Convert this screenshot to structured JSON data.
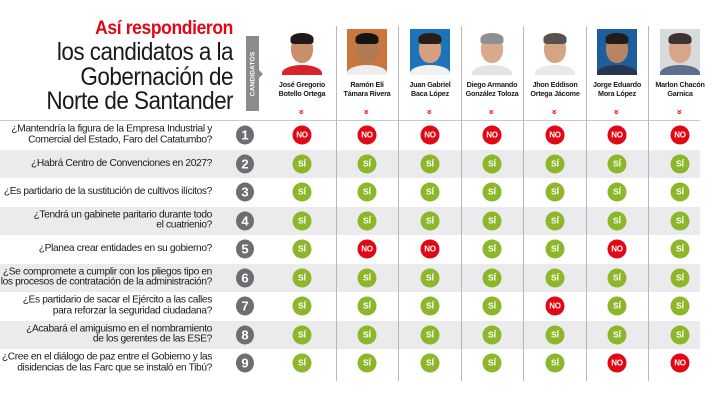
{
  "title": {
    "highlight": "Así respondieron",
    "lines": [
      "los candidatos a la",
      "Gobernación de",
      "Norte de Santander"
    ]
  },
  "candidates_tab_label": "CANDIDATOS",
  "colors": {
    "accent_red": "#e30613",
    "yes_green": "#8db72a",
    "number_gray": "#6d6e71",
    "alt_row": "#ebebed"
  },
  "candidates": [
    {
      "name_line1": "José Gregorio",
      "name_line2": "Botello Ortega"
    },
    {
      "name_line1": "Ramón Elí",
      "name_line2": "Támara Rivera"
    },
    {
      "name_line1": "Juan Gabriel",
      "name_line2": "Baca López"
    },
    {
      "name_line1": "Diego Armando",
      "name_line2": "González Toloza"
    },
    {
      "name_line1": "Jhon Eddison",
      "name_line2": "Ortega Jácome"
    },
    {
      "name_line1": "Jorge Eduardo",
      "name_line2": "Mora López"
    },
    {
      "name_line1": "Marlon Chacón",
      "name_line2": "Garnica"
    }
  ],
  "chevron_icon": "»",
  "labels": {
    "yes": "SÍ",
    "no": "NO"
  },
  "questions": [
    {
      "num": "1",
      "line1": "¿Mantendría la figura de la Empresa Industrial y",
      "line2": "Comercial del Estado, Faro del Catatumbo?",
      "answers": [
        "NO",
        "NO",
        "NO",
        "NO",
        "NO",
        "NO",
        "NO"
      ]
    },
    {
      "num": "2",
      "line1": "¿Habrá Centro de Convenciones en 2027?",
      "line2": "",
      "answers": [
        "SÍ",
        "SÍ",
        "SÍ",
        "SÍ",
        "SÍ",
        "SÍ",
        "SÍ"
      ]
    },
    {
      "num": "3",
      "line1": "¿Es partidario de la sustitución de cultivos ilícitos?",
      "line2": "",
      "answers": [
        "SÍ",
        "SÍ",
        "SÍ",
        "SÍ",
        "SÍ",
        "SÍ",
        "SÍ"
      ]
    },
    {
      "num": "4",
      "line1": "¿Tendrá un gabinete paritario durante todo",
      "line2": "el cuatrienio?",
      "answers": [
        "SÍ",
        "SÍ",
        "SÍ",
        "SÍ",
        "SÍ",
        "SÍ",
        "SÍ"
      ]
    },
    {
      "num": "5",
      "line1": "¿Planea crear entidades en su gobierno?",
      "line2": "",
      "answers": [
        "SÍ",
        "NO",
        "NO",
        "SÍ",
        "SÍ",
        "NO",
        "SÍ"
      ]
    },
    {
      "num": "6",
      "line1": "¿Se compromete a cumplir con los pliegos tipo en",
      "line2": "los procesos de contratación de la administración?",
      "answers": [
        "SÍ",
        "SÍ",
        "SÍ",
        "SÍ",
        "SÍ",
        "SÍ",
        "SÍ"
      ]
    },
    {
      "num": "7",
      "line1": "¿Es partidario de sacar el Ejército a las calles",
      "line2": "para reforzar la seguridad ciudadana?",
      "answers": [
        "SÍ",
        "SÍ",
        "SÍ",
        "SÍ",
        "NO",
        "SÍ",
        "SÍ"
      ]
    },
    {
      "num": "8",
      "line1": "¿Acabará el amiguismo en el nombramiento",
      "line2": "de los gerentes de las ESE?",
      "answers": [
        "SÍ",
        "SÍ",
        "SÍ",
        "SÍ",
        "SÍ",
        "SÍ",
        "SÍ"
      ]
    },
    {
      "num": "9",
      "line1": "¿Cree en el diálogo de paz entre el Gobierno y las",
      "line2": "disidencias de las Farc que se instaló en Tibú?",
      "answers": [
        "SÍ",
        "SÍ",
        "SÍ",
        "SÍ",
        "SÍ",
        "NO",
        "NO"
      ]
    }
  ]
}
